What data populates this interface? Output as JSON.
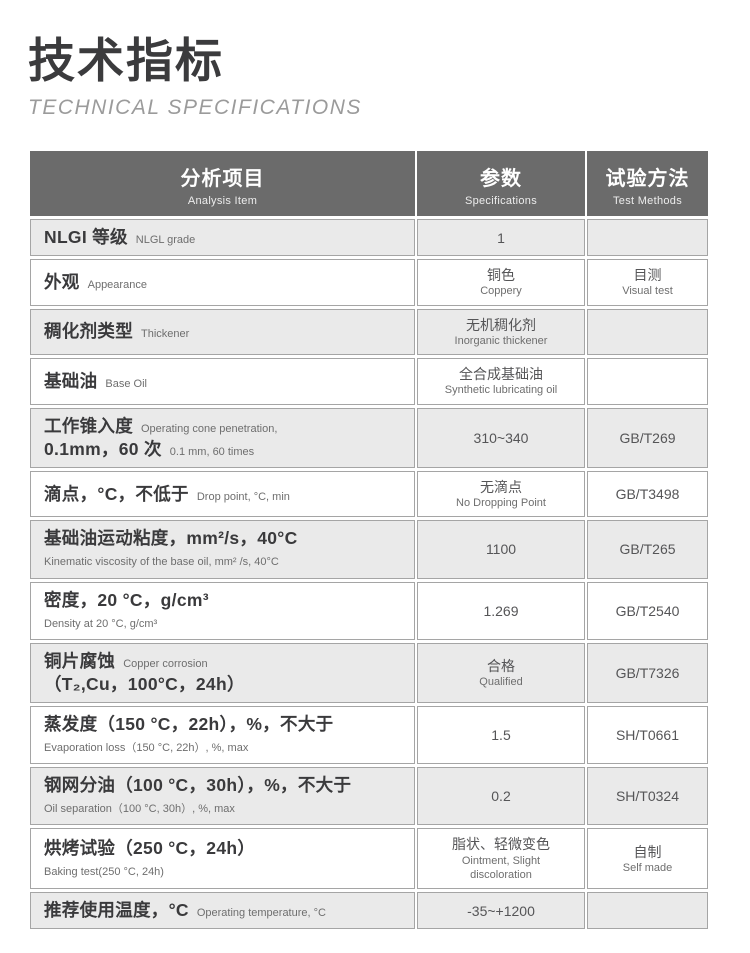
{
  "page": {
    "title": "技术指标",
    "subtitle": "TECHNICAL SPECIFICATIONS"
  },
  "colors": {
    "header_bg": "#6b6b6b",
    "header_text": "#ffffff",
    "row_shade": "#eaeaea",
    "row_plain": "#ffffff",
    "cell_border": "#a5a5a5",
    "title_text": "#3b3b3d",
    "subtitle_text": "#9b9b9b"
  },
  "table": {
    "columns": [
      {
        "zh": "分析项目",
        "en": "Analysis Item"
      },
      {
        "zh": "参数",
        "en": "Specifications"
      },
      {
        "zh": "试验方法",
        "en": "Test Methods"
      }
    ],
    "rows": [
      {
        "item_lines": [
          {
            "zh": "NLGI 等级",
            "en": "NLGL grade"
          }
        ],
        "spec_lines": [
          "1"
        ],
        "method_lines": []
      },
      {
        "item_lines": [
          {
            "zh": "外观",
            "en": "Appearance"
          }
        ],
        "spec_lines": [
          "铜色",
          "Coppery"
        ],
        "method_lines": [
          "目测",
          "Visual test"
        ]
      },
      {
        "item_lines": [
          {
            "zh": "稠化剂类型",
            "en": "Thickener"
          }
        ],
        "spec_lines": [
          "无机稠化剂",
          "Inorganic thickener"
        ],
        "method_lines": []
      },
      {
        "item_lines": [
          {
            "zh": "基础油",
            "en": "Base Oil"
          }
        ],
        "spec_lines": [
          "全合成基础油",
          "Synthetic lubricating oil"
        ],
        "method_lines": []
      },
      {
        "item_lines": [
          {
            "zh": "工作锥入度",
            "en": "Operating cone penetration,"
          },
          {
            "zh": "0.1mm，60 次",
            "en": "0.1 mm, 60 times"
          }
        ],
        "spec_lines": [
          "310~340"
        ],
        "method_lines": [
          "GB/T269"
        ]
      },
      {
        "item_lines": [
          {
            "zh": "滴点，°C，不低于",
            "en": "Drop point, °C, min"
          }
        ],
        "spec_lines": [
          "无滴点",
          "No Dropping Point"
        ],
        "method_lines": [
          "GB/T3498"
        ]
      },
      {
        "item_lines": [
          {
            "zh": "基础油运动粘度，mm²/s，40°C",
            "en": ""
          },
          {
            "zh": "",
            "en": "Kinematic viscosity of the base oil, mm² /s, 40°C"
          }
        ],
        "spec_lines": [
          "1100"
        ],
        "method_lines": [
          "GB/T265"
        ]
      },
      {
        "item_lines": [
          {
            "zh": "密度，20 °C，g/cm³",
            "en": ""
          },
          {
            "zh": "",
            "en": "Density at 20 °C, g/cm³"
          }
        ],
        "spec_lines": [
          "1.269"
        ],
        "method_lines": [
          "GB/T2540"
        ]
      },
      {
        "item_lines": [
          {
            "zh": "铜片腐蚀",
            "en": "Copper corrosion"
          },
          {
            "zh": "（T₂,Cu，100°C，24h）",
            "en": ""
          }
        ],
        "spec_lines": [
          "合格",
          "Qualified"
        ],
        "method_lines": [
          "GB/T7326"
        ]
      },
      {
        "item_lines": [
          {
            "zh": "蒸发度（150 °C，22h），%，不大于",
            "en": ""
          },
          {
            "zh": "",
            "en": "Evaporation loss（150 °C, 22h）, %, max"
          }
        ],
        "spec_lines": [
          "1.5"
        ],
        "method_lines": [
          "SH/T0661"
        ]
      },
      {
        "item_lines": [
          {
            "zh": "钢网分油（100 °C，30h），%，不大于",
            "en": ""
          },
          {
            "zh": "",
            "en": "Oil separation（100 °C, 30h）, %, max"
          }
        ],
        "spec_lines": [
          "0.2"
        ],
        "method_lines": [
          "SH/T0324"
        ]
      },
      {
        "item_lines": [
          {
            "zh": "烘烤试验（250 °C，24h）",
            "en": ""
          },
          {
            "zh": "",
            "en": "Baking test(250 °C, 24h)"
          }
        ],
        "spec_lines": [
          "脂状、轻微变色",
          "Ointment, Slight",
          "discoloration"
        ],
        "method_lines": [
          "自制",
          "Self made"
        ]
      },
      {
        "item_lines": [
          {
            "zh": "推荐使用温度，°C",
            "en": "Operating temperature, °C"
          }
        ],
        "spec_lines": [
          "-35~+1200"
        ],
        "method_lines": []
      }
    ]
  }
}
